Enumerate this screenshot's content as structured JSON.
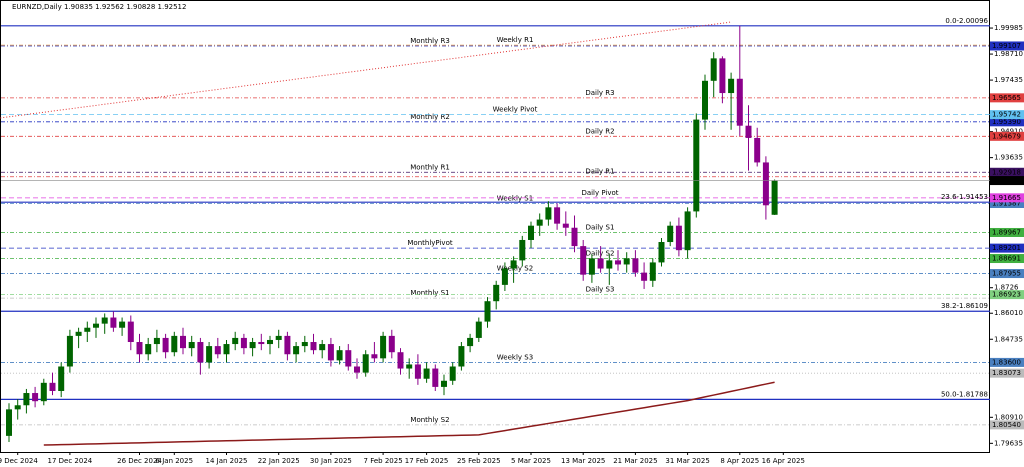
{
  "chart_data": {
    "type": "candlestick",
    "title": "EURNZD,Daily  1.90835 1.92562 1.90828 1.92512",
    "ylim": [
      1.7921,
      2.0136
    ],
    "yticks": [
      1.99985,
      {
        "value": 1.9871,
        "label": "1.98710"
      },
      1.97435,
      {
        "value": 1.9491,
        "label": "1.94910"
      },
      1.93635,
      1.8726,
      {
        "value": 1.8601,
        "label": "1.86010"
      },
      1.84735,
      {
        "value": 1.8091,
        "label": "1.80910"
      },
      1.79635
    ],
    "xticks": [
      {
        "value": 1,
        "label": "9 Dec 2024"
      },
      {
        "value": 7,
        "label": "17 Dec 2024"
      },
      {
        "value": 15,
        "label": "26 Dec 2024"
      },
      {
        "value": 19,
        "label": "6 Jan 2025"
      },
      {
        "value": 25,
        "label": "14 Jan 2025"
      },
      {
        "value": 31,
        "label": "22 Jan 2025"
      },
      {
        "value": 37,
        "label": "30 Jan 2025"
      },
      {
        "value": 43,
        "label": "7 Feb 2025"
      },
      {
        "value": 48,
        "label": "17 Feb 2025"
      },
      {
        "value": 54,
        "label": "25 Feb 2025"
      },
      {
        "value": 60,
        "label": "5 Mar 2025"
      },
      {
        "value": 66,
        "label": "13 Mar 2025"
      },
      {
        "value": 72,
        "label": "21 Mar 2025"
      },
      {
        "value": 78,
        "label": "31 Mar 2025"
      },
      {
        "value": 84,
        "label": "8 Apr 2025"
      },
      {
        "value": 89,
        "label": "16 Apr 2025"
      }
    ],
    "up_color": "#006400",
    "down_color": "#8b008b",
    "ma_color": "#8b1a1a",
    "candles": [
      [
        1.8,
        1.816,
        1.797,
        1.813
      ],
      [
        1.813,
        1.818,
        1.808,
        1.815
      ],
      [
        1.815,
        1.823,
        1.811,
        1.821
      ],
      [
        1.821,
        1.824,
        1.814,
        1.817
      ],
      [
        1.817,
        1.828,
        1.815,
        1.826
      ],
      [
        1.826,
        1.831,
        1.82,
        1.822
      ],
      [
        1.822,
        1.836,
        1.819,
        1.834
      ],
      [
        1.834,
        1.852,
        1.831,
        1.849
      ],
      [
        1.849,
        1.853,
        1.843,
        1.851
      ],
      [
        1.851,
        1.856,
        1.846,
        1.853
      ],
      [
        1.853,
        1.858,
        1.848,
        1.855
      ],
      [
        1.855,
        1.86,
        1.85,
        1.858
      ],
      [
        1.858,
        1.861,
        1.851,
        1.853
      ],
      [
        1.853,
        1.858,
        1.849,
        1.856
      ],
      [
        1.856,
        1.859,
        1.842,
        1.846
      ],
      [
        1.846,
        1.85,
        1.836,
        1.84
      ],
      [
        1.84,
        1.848,
        1.837,
        1.845
      ],
      [
        1.845,
        1.852,
        1.841,
        1.848
      ],
      [
        1.848,
        1.85,
        1.838,
        1.841
      ],
      [
        1.841,
        1.851,
        1.839,
        1.849
      ],
      [
        1.849,
        1.853,
        1.84,
        1.843
      ],
      [
        1.843,
        1.849,
        1.839,
        1.846
      ],
      [
        1.846,
        1.848,
        1.83,
        1.836
      ],
      [
        1.836,
        1.846,
        1.833,
        1.844
      ],
      [
        1.844,
        1.848,
        1.838,
        1.84
      ],
      [
        1.84,
        1.847,
        1.836,
        1.845
      ],
      [
        1.845,
        1.851,
        1.842,
        1.848
      ],
      [
        1.848,
        1.85,
        1.84,
        1.843
      ],
      [
        1.843,
        1.848,
        1.839,
        1.846
      ],
      [
        1.846,
        1.85,
        1.842,
        1.845
      ],
      [
        1.845,
        1.849,
        1.84,
        1.847
      ],
      [
        1.847,
        1.852,
        1.843,
        1.849
      ],
      [
        1.849,
        1.851,
        1.837,
        1.84
      ],
      [
        1.84,
        1.846,
        1.836,
        1.844
      ],
      [
        1.844,
        1.849,
        1.841,
        1.846
      ],
      [
        1.846,
        1.85,
        1.84,
        1.842
      ],
      [
        1.842,
        1.847,
        1.838,
        1.845
      ],
      [
        1.845,
        1.848,
        1.834,
        1.837
      ],
      [
        1.837,
        1.844,
        1.835,
        1.842
      ],
      [
        1.842,
        1.845,
        1.832,
        1.834
      ],
      [
        1.834,
        1.838,
        1.828,
        1.831
      ],
      [
        1.831,
        1.842,
        1.829,
        1.84
      ],
      [
        1.84,
        1.846,
        1.836,
        1.838
      ],
      [
        1.838,
        1.851,
        1.836,
        1.849
      ],
      [
        1.849,
        1.852,
        1.838,
        1.841
      ],
      [
        1.841,
        1.843,
        1.83,
        1.833
      ],
      [
        1.833,
        1.838,
        1.828,
        1.835
      ],
      [
        1.835,
        1.84,
        1.825,
        1.828
      ],
      [
        1.828,
        1.836,
        1.826,
        1.833
      ],
      [
        1.833,
        1.835,
        1.822,
        1.824
      ],
      [
        1.824,
        1.83,
        1.82,
        1.827
      ],
      [
        1.827,
        1.836,
        1.825,
        1.834
      ],
      [
        1.834,
        1.846,
        1.832,
        1.844
      ],
      [
        1.844,
        1.85,
        1.841,
        1.848
      ],
      [
        1.848,
        1.858,
        1.846,
        1.856
      ],
      [
        1.856,
        1.868,
        1.853,
        1.866
      ],
      [
        1.866,
        1.876,
        1.862,
        1.874
      ],
      [
        1.874,
        1.885,
        1.871,
        1.882
      ],
      [
        1.882,
        1.888,
        1.875,
        1.886
      ],
      [
        1.886,
        1.898,
        1.883,
        1.896
      ],
      [
        1.896,
        1.905,
        1.892,
        1.903
      ],
      [
        1.903,
        1.909,
        1.898,
        1.906
      ],
      [
        1.906,
        1.915,
        1.903,
        1.912
      ],
      [
        1.912,
        1.914,
        1.901,
        1.904
      ],
      [
        1.904,
        1.91,
        1.898,
        1.902
      ],
      [
        1.902,
        1.908,
        1.89,
        1.893
      ],
      [
        1.893,
        1.896,
        1.876,
        1.879
      ],
      [
        1.879,
        1.889,
        1.875,
        1.887
      ],
      [
        1.887,
        1.893,
        1.88,
        1.882
      ],
      [
        1.882,
        1.889,
        1.874,
        1.886
      ],
      [
        1.886,
        1.891,
        1.881,
        1.884
      ],
      [
        1.884,
        1.89,
        1.88,
        1.887
      ],
      [
        1.887,
        1.891,
        1.878,
        1.88
      ],
      [
        1.88,
        1.885,
        1.872,
        1.876
      ],
      [
        1.876,
        1.887,
        1.873,
        1.885
      ],
      [
        1.885,
        1.897,
        1.883,
        1.895
      ],
      [
        1.895,
        1.905,
        1.893,
        1.903
      ],
      [
        1.903,
        1.907,
        1.888,
        1.891
      ],
      [
        1.891,
        1.912,
        1.887,
        1.91
      ],
      [
        1.91,
        1.958,
        1.907,
        1.955
      ],
      [
        1.955,
        1.977,
        1.95,
        1.974
      ],
      [
        1.974,
        1.988,
        1.966,
        1.985
      ],
      [
        1.985,
        1.986,
        1.963,
        1.968
      ],
      [
        1.968,
        1.978,
        1.95,
        1.975
      ],
      [
        1.975,
        2.00096,
        1.947,
        1.952
      ],
      [
        1.952,
        1.962,
        1.93,
        1.946
      ],
      [
        1.946,
        1.951,
        1.932,
        1.934
      ],
      [
        1.934,
        1.937,
        1.906,
        1.913
      ],
      [
        1.90835,
        1.92562,
        1.90828,
        1.92512
      ]
    ],
    "ma": [
      null,
      null,
      null,
      null,
      1.7955,
      1.7956,
      1.7957,
      1.7958,
      1.7959,
      1.796,
      1.7961,
      1.7962,
      1.7963,
      1.7964,
      1.7965,
      1.7966,
      1.7967,
      1.7968,
      1.7969,
      1.797,
      1.7971,
      1.7972,
      1.7973,
      1.7974,
      1.7975,
      1.7976,
      1.7977,
      1.7978,
      1.7979,
      1.798,
      1.7981,
      1.7982,
      1.7983,
      1.7984,
      1.7985,
      1.7986,
      1.7987,
      1.7988,
      1.7989,
      1.799,
      1.7991,
      1.7992,
      1.7993,
      1.7994,
      1.7995,
      1.7996,
      1.7997,
      1.7998,
      1.7999,
      1.8,
      1.8001,
      1.8002,
      1.8003,
      1.8004,
      1.8005,
      1.8012,
      1.8019,
      1.8026,
      1.8033,
      1.804,
      1.8047,
      1.8054,
      1.8061,
      1.8068,
      1.8075,
      1.8082,
      1.8089,
      1.8096,
      1.8103,
      1.811,
      1.8117,
      1.8124,
      1.8131,
      1.8138,
      1.8145,
      1.8152,
      1.8159,
      1.8166,
      1.8173,
      1.8182,
      1.8191,
      1.82,
      1.8209,
      1.8218,
      1.8227,
      1.8236,
      1.8245,
      1.8254,
      1.8263
    ],
    "trendline": {
      "x": [
        -1,
        83
      ],
      "y": [
        1.9558,
        2.0028
      ],
      "color": "#e03030"
    },
    "levels": {
      "monthly": [
        {
          "label": "Monthly R3",
          "value": 1.99107,
          "color": "#2030c0",
          "style": "dashdot",
          "tag": "1.99107"
        },
        {
          "label": "Monthly R2",
          "value": 1.9539,
          "color": "#2030c0",
          "style": "dashdot",
          "tag": "1.95390"
        },
        {
          "label": "Monthly R1",
          "value": 1.92918,
          "color": "#3a1060",
          "style": "dashdot",
          "tag": "1.92918"
        },
        {
          "label": "MonthlyPivot",
          "value": 1.89201,
          "color": "#2030c0",
          "style": "dashed",
          "tag": "1.89201"
        },
        {
          "label": "Monthly S1",
          "value": 1.8675,
          "color": "#bbbbbb",
          "style": "dashdot"
        },
        {
          "label": "Monthly S2",
          "value": 1.8054,
          "color": "#bbbbbb",
          "style": "dashdot",
          "tag": "1.80540"
        }
      ],
      "weekly": [
        {
          "label": "Weekly R1",
          "value": 1.9915,
          "color": "#f0a040",
          "style": "dashdot"
        },
        {
          "label": "Weekly Pivot",
          "value": 1.95742,
          "color": "#60c0f0",
          "style": "dashed",
          "tag": "1.95742"
        },
        {
          "label": "Weekly S1",
          "value": 1.91387,
          "color": "#4a80c0",
          "style": "dashdot",
          "tag": "1.91387"
        },
        {
          "label": "Weekly S2",
          "value": 1.87955,
          "color": "#4a80c0",
          "style": "dashdot",
          "tag": "1.87955"
        },
        {
          "label": "Weekly S3",
          "value": 1.836,
          "color": "#4a80c0",
          "style": "dashdot",
          "tag": "1.83600"
        }
      ],
      "daily": [
        {
          "label": "Daily R3",
          "value": 1.96565,
          "color": "#e04040",
          "style": "dashdot",
          "tag": "1.96565"
        },
        {
          "label": "Daily R2",
          "value": 1.94679,
          "color": "#e04040",
          "style": "dashdot",
          "tag": "1.94679"
        },
        {
          "label": "Daily R1",
          "value": 1.927,
          "color": "#e04040",
          "style": "dashdot"
        },
        {
          "label": "Daily Pivot",
          "value": 1.91665,
          "color": "#e040e0",
          "style": "dashed",
          "tag": "1.91665"
        },
        {
          "label": "Daily S1",
          "value": 1.89967,
          "color": "#40b040",
          "style": "dashdot",
          "tag": "1.89967"
        },
        {
          "label": "Daily S2",
          "value": 1.88691,
          "color": "#40b040",
          "style": "dashdot",
          "tag": "1.88691"
        },
        {
          "label": "Daily S3",
          "value": 1.86923,
          "color": "#80d080",
          "style": "dashdot",
          "tag": "1.86923"
        }
      ],
      "fibonacci": [
        {
          "label": "0.0-2.00096",
          "value": 2.00096,
          "color": "#2030c0",
          "style": "solid"
        },
        {
          "label": "23.6-1.91453",
          "value": 1.91453,
          "color": "#2030c0",
          "style": "solid"
        },
        {
          "label": "38.2-1.86109",
          "value": 1.86109,
          "color": "#2030c0",
          "style": "solid"
        },
        {
          "label": "50.0-1.81788",
          "value": 1.81788,
          "color": "#2030c0",
          "style": "solid"
        }
      ],
      "other": [
        {
          "value": 1.83073,
          "color": "#bbbbbb",
          "style": "dotted",
          "tag": "1.83073"
        }
      ]
    },
    "current_price": {
      "value": 1.92512,
      "tag": "1.92512",
      "color": "#000000"
    }
  }
}
